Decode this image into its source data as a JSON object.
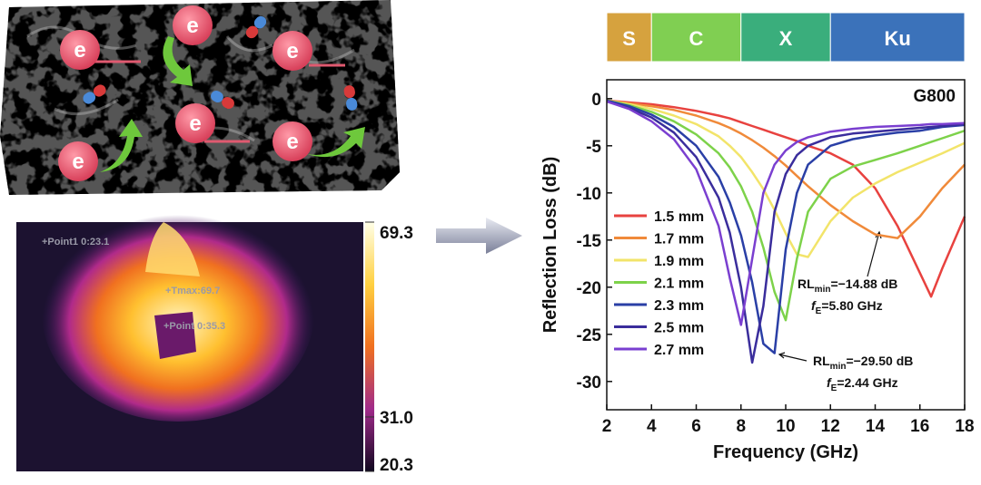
{
  "illustration": {
    "electron": "e"
  },
  "thermal": {
    "points": [
      "+Point1 0:23.1",
      "+Tmax:69.7",
      "+Point 0:35.3"
    ],
    "colorbar": {
      "lim": [
        20.3,
        69.3
      ],
      "ticks": [
        69.3,
        {
          "value": 31,
          "label": "31.0"
        },
        20.3
      ]
    }
  },
  "chart_data": {
    "type": "line",
    "label": "G800",
    "xlabel": "Frequency (GHz)",
    "ylabel": "Reflection Loss (dB)",
    "bands": [
      {
        "label": "S",
        "range": [
          2,
          4
        ],
        "color": "#d6a23e"
      },
      {
        "label": "C",
        "range": [
          4,
          8
        ],
        "color": "#80cf52"
      },
      {
        "label": "X",
        "range": [
          8,
          12
        ],
        "color": "#3aae7c"
      },
      {
        "label": "Ku",
        "range": [
          12,
          18
        ],
        "color": "#3b72ba"
      }
    ],
    "x": [
      2,
      3,
      4,
      5,
      6,
      7,
      7.5,
      8,
      8.5,
      9,
      9.5,
      10,
      10.5,
      11,
      12,
      13,
      14,
      15,
      16,
      16.5,
      17,
      18
    ],
    "series": [
      {
        "name": "1.5 mm",
        "color": "#e8423f",
        "values": [
          -0.2,
          -0.4,
          -0.6,
          -0.9,
          -1.3,
          -1.8,
          -2.1,
          -2.5,
          -2.9,
          -3.3,
          -3.7,
          -4.1,
          -4.5,
          -5,
          -5.8,
          -7,
          -9.5,
          -13.5,
          -18.5,
          -21,
          -18,
          -12.5
        ]
      },
      {
        "name": "1.7 mm",
        "color": "#f08a3a",
        "values": [
          -0.2,
          -0.5,
          -0.8,
          -1.2,
          -1.8,
          -2.6,
          -3.1,
          -3.7,
          -4.4,
          -5.2,
          -6.1,
          -7.1,
          -8.2,
          -9.3,
          -11.3,
          -13,
          -14.4,
          -14.8,
          -12.5,
          -11,
          -9.5,
          -7
        ]
      },
      {
        "name": "1.9 mm",
        "color": "#f2e46a",
        "values": [
          -0.2,
          -0.6,
          -1.1,
          -1.8,
          -2.7,
          -4,
          -5,
          -6.2,
          -7.8,
          -9.6,
          -11.8,
          -14.3,
          -16.5,
          -16.8,
          -13,
          -10.5,
          -9,
          -7.8,
          -6.8,
          -6.3,
          -5.8,
          -4.7
        ]
      },
      {
        "name": "2.1 mm",
        "color": "#7dd24a",
        "values": [
          -0.2,
          -0.7,
          -1.4,
          -2.4,
          -3.8,
          -5.8,
          -7.3,
          -9.3,
          -12,
          -15.8,
          -20.5,
          -23.5,
          -17,
          -12,
          -8.5,
          -7.2,
          -6.5,
          -5.8,
          -5,
          -4.6,
          -4.2,
          -3.4
        ]
      },
      {
        "name": "2.3 mm",
        "color": "#2a3fa6",
        "values": [
          -0.2,
          -0.8,
          -1.7,
          -3,
          -5,
          -8.3,
          -11,
          -14.5,
          -19.5,
          -26,
          -27,
          -16,
          -10,
          -7,
          -5,
          -4.3,
          -3.9,
          -3.6,
          -3.4,
          -3.2,
          -3,
          -2.8
        ]
      },
      {
        "name": "2.5 mm",
        "color": "#3a2d9c",
        "values": [
          -0.3,
          -1,
          -2,
          -3.6,
          -6.2,
          -10.5,
          -14.2,
          -20,
          -28,
          -22,
          -12,
          -8,
          -6,
          -5,
          -4.1,
          -3.7,
          -3.5,
          -3.3,
          -3.1,
          -3,
          -2.9,
          -2.7
        ]
      },
      {
        "name": "2.7 mm",
        "color": "#7a3fd0",
        "values": [
          -0.3,
          -1.1,
          -2.4,
          -4.3,
          -7.5,
          -13.5,
          -19,
          -24,
          -17,
          -10,
          -7,
          -5.5,
          -4.6,
          -4.1,
          -3.5,
          -3.2,
          -3,
          -2.9,
          -2.8,
          -2.7,
          -2.7,
          -2.6
        ]
      }
    ],
    "xlim": [
      2,
      18
    ],
    "ylim": [
      -33,
      2
    ],
    "xticks": [
      2,
      4,
      6,
      8,
      10,
      12,
      14,
      16,
      18
    ],
    "yticks": [
      0,
      -5,
      -10,
      -15,
      -20,
      -25,
      -30
    ],
    "annotations": [
      {
        "rl": [
          "RL",
          "min",
          "=−14.88 dB"
        ],
        "fe": [
          "f",
          "E",
          "=5.80 GHz"
        ]
      },
      {
        "rl": [
          "RL",
          "min",
          "=−29.50 dB"
        ],
        "fe": [
          "f",
          "E",
          "=2.44 GHz"
        ]
      }
    ]
  }
}
